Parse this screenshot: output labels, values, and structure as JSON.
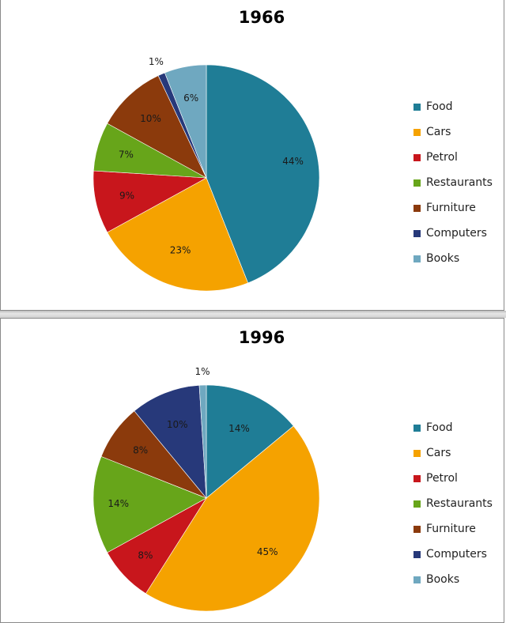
{
  "colors": {
    "Food": "#1f7d96",
    "Cars": "#f5a200",
    "Petrol": "#c8161c",
    "Restaurants": "#67a51a",
    "Furniture": "#8b3a0c",
    "Computers": "#27397a",
    "Books": "#6fa8c0"
  },
  "chart_data": [
    {
      "type": "pie",
      "title": "1966",
      "categories": [
        "Food",
        "Cars",
        "Petrol",
        "Restaurants",
        "Furniture",
        "Computers",
        "Books"
      ],
      "values": [
        44,
        23,
        9,
        7,
        10,
        1,
        6
      ],
      "labels": [
        "44%",
        "23%",
        "9%",
        "7%",
        "10%",
        "1%",
        "6%"
      ],
      "legend_position": "right"
    },
    {
      "type": "pie",
      "title": "1996",
      "categories": [
        "Food",
        "Cars",
        "Petrol",
        "Restaurants",
        "Furniture",
        "Computers",
        "Books"
      ],
      "values": [
        14,
        45,
        8,
        14,
        8,
        10,
        1
      ],
      "labels": [
        "14%",
        "45%",
        "8%",
        "14%",
        "8%",
        "10%",
        "1%"
      ],
      "legend_position": "right"
    }
  ]
}
